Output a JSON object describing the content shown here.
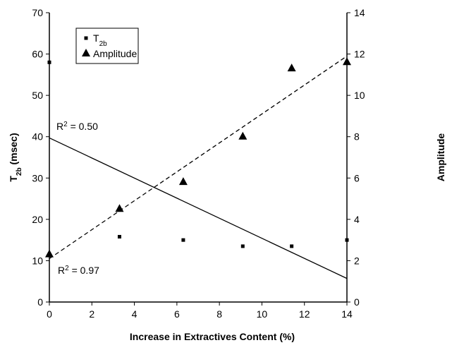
{
  "chart_data": {
    "type": "scatter",
    "xlabel": "Increase in Extractives Content (%)",
    "ylabel": {
      "text": "T",
      "sub": "2b",
      "tail": " (msec)"
    },
    "y2label": "Amplitude",
    "xlim": [
      0,
      14
    ],
    "xticks": [
      0,
      2,
      4,
      6,
      8,
      10,
      12,
      14
    ],
    "ylim": [
      0,
      70
    ],
    "yticks": [
      0,
      10,
      20,
      30,
      40,
      50,
      60,
      70
    ],
    "y2lim": [
      0,
      14
    ],
    "y2ticks": [
      0,
      2,
      4,
      6,
      8,
      10,
      12,
      14
    ],
    "legend": "upper left",
    "series": [
      {
        "name": {
          "text": "T",
          "sub": "2b"
        },
        "marker": "square",
        "color": "#000000",
        "axis": "y",
        "x": [
          0,
          3.3,
          6.3,
          9.1,
          11.4,
          14
        ],
        "values": [
          58,
          15.8,
          15,
          13.5,
          13.5,
          15
        ],
        "trend": {
          "x": [
            0,
            14
          ],
          "values": [
            39.7,
            5.7
          ],
          "dash": false
        },
        "annotation": {
          "text": "R",
          "sup": "2",
          "tail": " = 0.50"
        }
      },
      {
        "name": {
          "text": "Amplitude"
        },
        "marker": "triangle",
        "color": "#000000",
        "axis": "y2",
        "x": [
          0,
          3.3,
          6.3,
          9.1,
          11.4,
          14
        ],
        "values": [
          2.3,
          4.5,
          5.8,
          8,
          11.3,
          11.6
        ],
        "trend": {
          "x": [
            0,
            14
          ],
          "values": [
            2.1,
            11.9
          ],
          "dash": true
        },
        "annotation": {
          "text": "R",
          "sup": "2",
          "tail": " = 0.97"
        }
      }
    ]
  }
}
